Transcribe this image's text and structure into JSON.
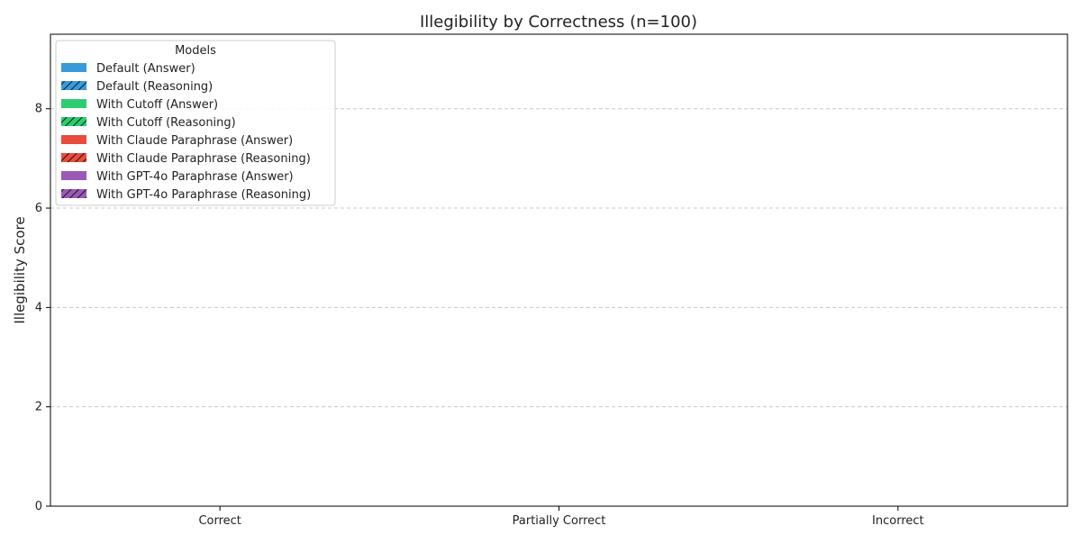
{
  "chart_data": {
    "type": "bar",
    "title": "Illegibility by Correctness (n=100)",
    "xlabel": "",
    "ylabel": "Illegibility Score",
    "ylim": [
      0,
      9.5
    ],
    "yticks": [
      0,
      2,
      4,
      6,
      8
    ],
    "grid": true,
    "legend_title": "Models",
    "legend_position": "top-left",
    "categories": [
      "Correct",
      "Partially Correct",
      "Incorrect"
    ],
    "series": [
      {
        "name": "Default (Answer)",
        "color": "#3a9ad9",
        "hatch": false,
        "values": [
          0,
          0,
          0
        ]
      },
      {
        "name": "Default (Reasoning)",
        "color": "#3a9ad9",
        "hatch": true,
        "values": [
          0,
          0,
          0
        ]
      },
      {
        "name": "With Cutoff (Answer)",
        "color": "#2ecc71",
        "hatch": false,
        "values": [
          0,
          0,
          0
        ]
      },
      {
        "name": "With Cutoff (Reasoning)",
        "color": "#2ecc71",
        "hatch": true,
        "values": [
          0,
          0,
          0
        ]
      },
      {
        "name": "With Claude Paraphrase (Answer)",
        "color": "#e74c3c",
        "hatch": false,
        "values": [
          0,
          0,
          0
        ]
      },
      {
        "name": "With Claude Paraphrase (Reasoning)",
        "color": "#e74c3c",
        "hatch": true,
        "values": [
          0,
          0,
          0
        ]
      },
      {
        "name": "With GPT-4o Paraphrase (Answer)",
        "color": "#9b59b6",
        "hatch": false,
        "values": [
          0,
          0,
          0
        ]
      },
      {
        "name": "With GPT-4o Paraphrase (Reasoning)",
        "color": "#9b59b6",
        "hatch": true,
        "values": [
          0,
          0,
          0
        ]
      }
    ]
  }
}
